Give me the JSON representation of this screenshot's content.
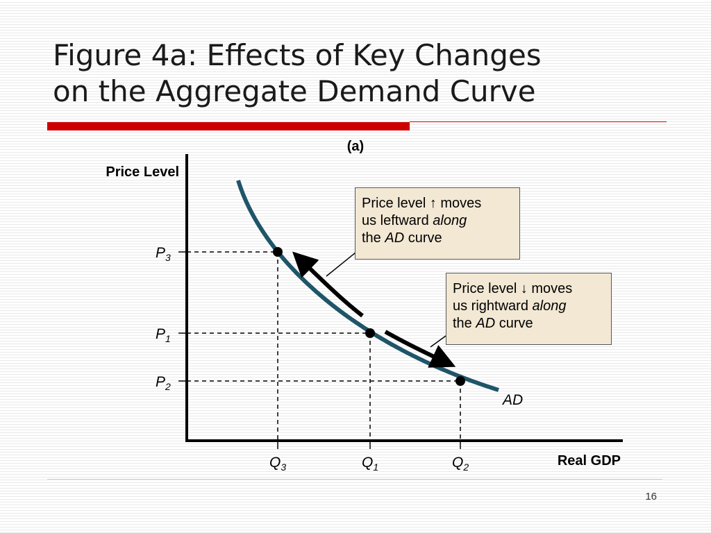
{
  "slide": {
    "title_line1": "Figure 4a:  Effects of Key Changes",
    "title_line2": "on the Aggregate Demand Curve",
    "page_number": "16"
  },
  "chart_data": {
    "type": "line",
    "panel_label": "(a)",
    "ylabel": "Price Level",
    "xlabel": "Real GDP",
    "curve_label": "AD",
    "points": [
      {
        "name": "P3-Q3",
        "price": "P",
        "price_sub": "3",
        "quantity": "Q",
        "quantity_sub": "3",
        "x": 1.0,
        "y": 3.0
      },
      {
        "name": "P1-Q1",
        "price": "P",
        "price_sub": "1",
        "quantity": "Q",
        "quantity_sub": "1",
        "x": 2.0,
        "y": 2.0
      },
      {
        "name": "P2-Q2",
        "price": "P",
        "price_sub": "2",
        "quantity": "Q",
        "quantity_sub": "2",
        "x": 3.0,
        "y": 1.4
      }
    ],
    "y_ticks_order": [
      "P3",
      "P1",
      "P2"
    ],
    "x_ticks_order": [
      "Q3",
      "Q1",
      "Q2"
    ],
    "curve_color": "#1f5568",
    "annotations": [
      {
        "name": "price-up-callout",
        "line1_pre": "Price level ",
        "line1_arrow": "↑",
        "line1_post": " moves",
        "line2_pre": "us leftward ",
        "line2_em": "along",
        "line3_pre": "the ",
        "line3_em": "AD",
        "line3_post": " curve"
      },
      {
        "name": "price-down-callout",
        "line1_pre": "Price level ",
        "line1_arrow": "↓",
        "line1_post": " moves",
        "line2_pre": "us rightward ",
        "line2_em": "along",
        "line3_pre": "the ",
        "line3_em": "AD",
        "line3_post": " curve"
      }
    ],
    "callout_bg": "#f3e8d4"
  }
}
